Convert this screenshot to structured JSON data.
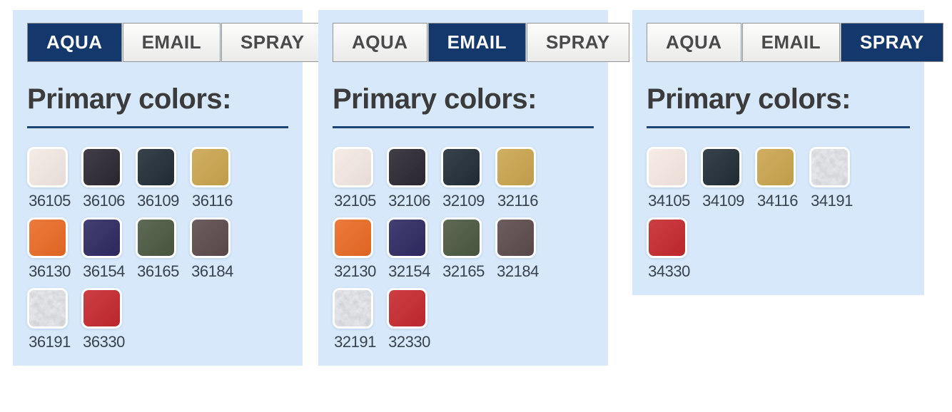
{
  "theme": {
    "page_bg": "#ffffff",
    "panel_bg": "#d6e8fa",
    "tab_active_bg": "#14386b",
    "tab_active_text": "#ffffff",
    "tab_inactive_text": "#4a4a4a",
    "tab_border": "#949494",
    "heading_text": "#3b3b3b",
    "rule_color": "#1d4373",
    "code_text": "#39424d",
    "metallic_base": "#b5b8bd"
  },
  "panels": [
    {
      "tabs": [
        {
          "label": "AQUA",
          "active": true
        },
        {
          "label": "EMAIL",
          "active": false
        },
        {
          "label": "SPRAY",
          "active": false
        }
      ],
      "heading": "Primary colors:",
      "swatches": [
        {
          "code": "36105",
          "color": "#f5eae4"
        },
        {
          "code": "36106",
          "color": "#2b2831"
        },
        {
          "code": "36109",
          "color": "#222d37"
        },
        {
          "code": "36116",
          "color": "#cba64f"
        },
        {
          "code": "36130",
          "color": "#eb6b25"
        },
        {
          "code": "36154",
          "color": "#2f2a62"
        },
        {
          "code": "36165",
          "color": "#4b5941"
        },
        {
          "code": "36184",
          "color": "#5d4b4d"
        },
        {
          "code": "36191",
          "color": "#b5b8bd",
          "texture": "metallic"
        },
        {
          "code": "36330",
          "color": "#c6292e"
        }
      ]
    },
    {
      "tabs": [
        {
          "label": "AQUA",
          "active": false
        },
        {
          "label": "EMAIL",
          "active": true
        },
        {
          "label": "SPRAY",
          "active": false
        }
      ],
      "heading": "Primary colors:",
      "swatches": [
        {
          "code": "32105",
          "color": "#f5eae4"
        },
        {
          "code": "32106",
          "color": "#2b2831"
        },
        {
          "code": "32109",
          "color": "#222d37"
        },
        {
          "code": "32116",
          "color": "#cba64f"
        },
        {
          "code": "32130",
          "color": "#eb6b25"
        },
        {
          "code": "32154",
          "color": "#2f2a62"
        },
        {
          "code": "32165",
          "color": "#4b5941"
        },
        {
          "code": "32184",
          "color": "#5d4b4d"
        },
        {
          "code": "32191",
          "color": "#b5b8bd",
          "texture": "metallic"
        },
        {
          "code": "32330",
          "color": "#c6292e"
        }
      ]
    },
    {
      "tabs": [
        {
          "label": "AQUA",
          "active": false
        },
        {
          "label": "EMAIL",
          "active": false
        },
        {
          "label": "SPRAY",
          "active": true
        }
      ],
      "heading": "Primary colors:",
      "swatches": [
        {
          "code": "34105",
          "color": "#f7eae3"
        },
        {
          "code": "34109",
          "color": "#222d37"
        },
        {
          "code": "34116",
          "color": "#cba64f"
        },
        {
          "code": "34191",
          "color": "#b5b8bd",
          "texture": "metallic"
        },
        {
          "code": "34330",
          "color": "#c6292e"
        }
      ]
    }
  ]
}
